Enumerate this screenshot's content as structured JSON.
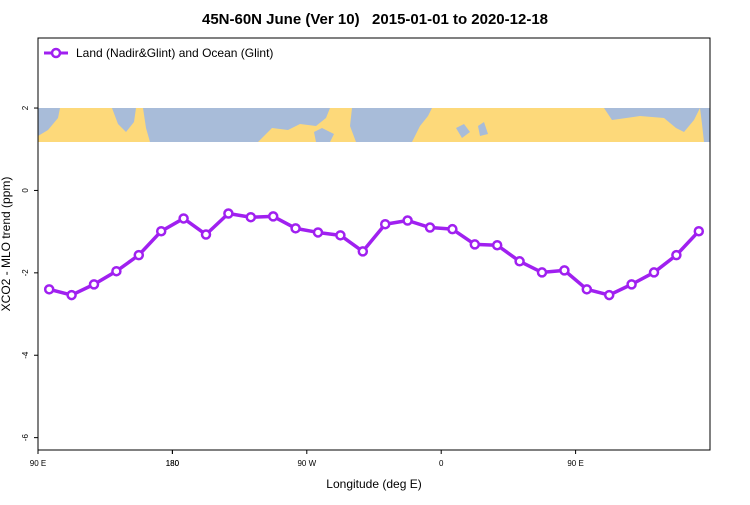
{
  "chart_data": {
    "type": "line",
    "title": "45N-60N June (Ver 10)   2015-01-01 to 2020-12-18",
    "xlabel": "Longitude (deg E)",
    "ylabel": "XCO2 - MLO trend (ppm)",
    "x": [
      97.5,
      112.5,
      127.5,
      142.5,
      157.5,
      172.5,
      187.5,
      202.5,
      217.5,
      232.5,
      247.5,
      262.5,
      277.5,
      292.5,
      307.5,
      322.5,
      337.5,
      352.5,
      367.5,
      382.5,
      397.5,
      412.5,
      427.5,
      442.5,
      457.5,
      472.5,
      487.5,
      502.5,
      517.5,
      532.5
    ],
    "series": [
      {
        "name": "Land (Nadir&Glint) and Ocean (Glint)",
        "color": "#a020f0",
        "values": [
          -2.4,
          -2.54,
          -2.28,
          -1.96,
          -1.57,
          -0.99,
          -0.68,
          -1.07,
          -0.56,
          -0.65,
          -0.63,
          -0.92,
          -1.02,
          -1.09,
          -1.48,
          -0.82,
          -0.73,
          -0.9,
          -0.94,
          -1.31,
          -1.33,
          -1.72,
          -1.99,
          -1.94,
          -2.4,
          -2.54,
          -2.28,
          -1.99,
          -1.57,
          -0.99
        ]
      }
    ],
    "xlim": [
      90,
      540
    ],
    "xticks": [
      {
        "value": 90,
        "label": "90 E"
      },
      180,
      {
        "value": 270,
        "label": "90 W"
      },
      {
        "value": 360,
        "label": "0"
      },
      {
        "value": 450,
        "label": "90 E"
      },
      180
    ],
    "ylim": [
      -6.3,
      3.7
    ],
    "yticks": [
      -6,
      -4,
      -2,
      0,
      2
    ],
    "legend": "top-left"
  }
}
